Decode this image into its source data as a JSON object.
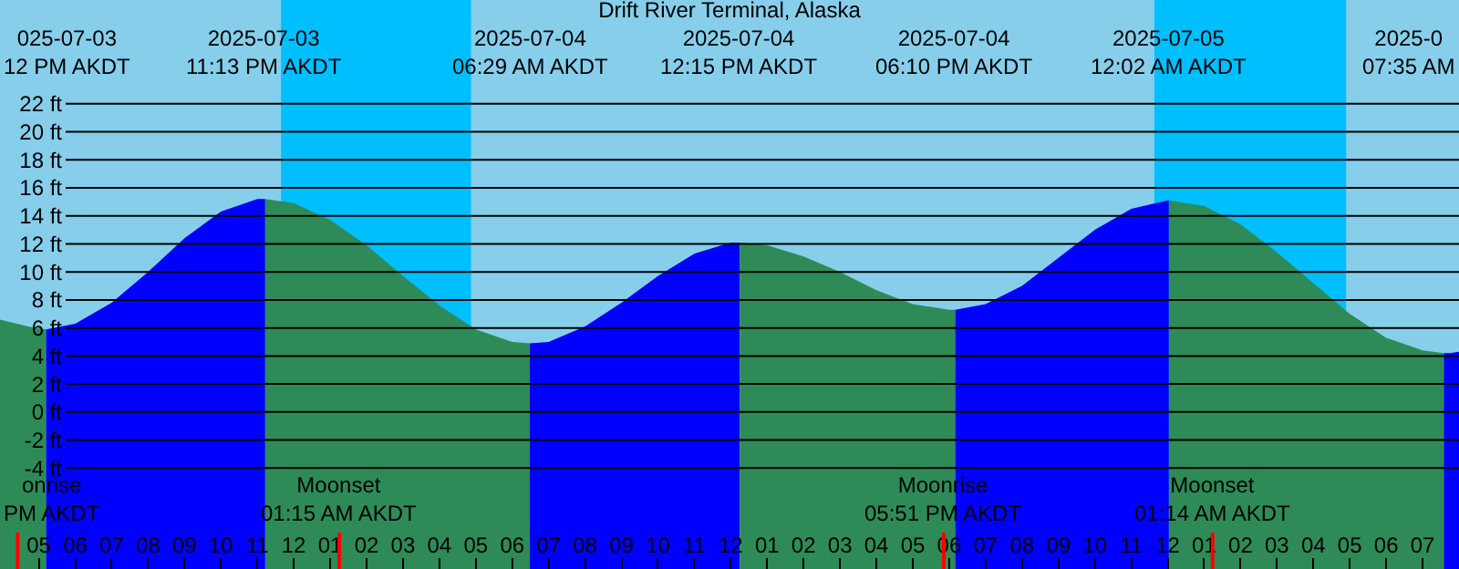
{
  "chart_data": {
    "type": "area",
    "title": "Drift River Terminal, Alaska",
    "xlim": [
      "2025-07-03T15:56",
      "2025-07-05T08:00"
    ],
    "ylim": [
      -11.2,
      29.4
    ],
    "xticks": [
      {
        "value": "2025-07-03T17:00",
        "label": "05"
      },
      {
        "value": "2025-07-03T18:00",
        "label": "06"
      },
      {
        "value": "2025-07-03T19:00",
        "label": "07"
      },
      {
        "value": "2025-07-03T20:00",
        "label": "08"
      },
      {
        "value": "2025-07-03T21:00",
        "label": "09"
      },
      {
        "value": "2025-07-03T22:00",
        "label": "10"
      },
      {
        "value": "2025-07-03T23:00",
        "label": "11"
      },
      {
        "value": "2025-07-04T00:00",
        "label": "12"
      },
      {
        "value": "2025-07-04T01:00",
        "label": "01"
      },
      {
        "value": "2025-07-04T02:00",
        "label": "02"
      },
      {
        "value": "2025-07-04T03:00",
        "label": "03"
      },
      {
        "value": "2025-07-04T04:00",
        "label": "04"
      },
      {
        "value": "2025-07-04T05:00",
        "label": "05"
      },
      {
        "value": "2025-07-04T06:00",
        "label": "06"
      },
      {
        "value": "2025-07-04T07:00",
        "label": "07"
      },
      {
        "value": "2025-07-04T08:00",
        "label": "08"
      },
      {
        "value": "2025-07-04T09:00",
        "label": "09"
      },
      {
        "value": "2025-07-04T10:00",
        "label": "10"
      },
      {
        "value": "2025-07-04T11:00",
        "label": "11"
      },
      {
        "value": "2025-07-04T12:00",
        "label": "12"
      },
      {
        "value": "2025-07-04T13:00",
        "label": "01"
      },
      {
        "value": "2025-07-04T14:00",
        "label": "02"
      },
      {
        "value": "2025-07-04T15:00",
        "label": "03"
      },
      {
        "value": "2025-07-04T16:00",
        "label": "04"
      },
      {
        "value": "2025-07-04T17:00",
        "label": "05"
      },
      {
        "value": "2025-07-04T18:00",
        "label": "06"
      },
      {
        "value": "2025-07-04T19:00",
        "label": "07"
      },
      {
        "value": "2025-07-04T20:00",
        "label": "08"
      },
      {
        "value": "2025-07-04T21:00",
        "label": "09"
      },
      {
        "value": "2025-07-04T22:00",
        "label": "10"
      },
      {
        "value": "2025-07-04T23:00",
        "label": "11"
      },
      {
        "value": "2025-07-05T00:00",
        "label": "12"
      },
      {
        "value": "2025-07-05T01:00",
        "label": "01"
      },
      {
        "value": "2025-07-05T02:00",
        "label": "02"
      },
      {
        "value": "2025-07-05T03:00",
        "label": "03"
      },
      {
        "value": "2025-07-05T04:00",
        "label": "04"
      },
      {
        "value": "2025-07-05T05:00",
        "label": "05"
      },
      {
        "value": "2025-07-05T06:00",
        "label": "06"
      },
      {
        "value": "2025-07-05T07:00",
        "label": "07"
      }
    ],
    "yticks": [
      {
        "value": -4,
        "label": "-4 ft"
      },
      {
        "value": -2,
        "label": "-2 ft"
      },
      {
        "value": 0,
        "label": "0 ft"
      },
      {
        "value": 2,
        "label": "2 ft"
      },
      {
        "value": 4,
        "label": "4 ft"
      },
      {
        "value": 6,
        "label": "6 ft"
      },
      {
        "value": 8,
        "label": "8 ft"
      },
      {
        "value": 10,
        "label": "10 ft"
      },
      {
        "value": 12,
        "label": "12 ft"
      },
      {
        "value": 14,
        "label": "14 ft"
      },
      {
        "value": 16,
        "label": "16 ft"
      },
      {
        "value": 18,
        "label": "18 ft"
      },
      {
        "value": 20,
        "label": "20 ft"
      },
      {
        "value": 22,
        "label": "22 ft"
      }
    ],
    "grid": "y",
    "bands": [
      {
        "axis": "x",
        "from": "2025-07-03T23:39",
        "to": "2025-07-04T04:52",
        "color": "#00bfff"
      },
      {
        "axis": "x",
        "from": "2025-07-04T23:38",
        "to": "2025-07-05T04:54",
        "color": "#00bfff"
      }
    ],
    "ref_lines": [
      {
        "axis": "x",
        "value": "2025-07-03T16:25",
        "label": "onrise\nPM AKDT",
        "color": "#ff0000"
      },
      {
        "axis": "x",
        "value": "2025-07-04T01:15",
        "label": "Moonset\n01:15 AM AKDT",
        "color": "#ff0000"
      },
      {
        "axis": "x",
        "value": "2025-07-04T17:51",
        "label": "Moonrise\n05:51 PM AKDT",
        "color": "#ff0000"
      },
      {
        "axis": "x",
        "value": "2025-07-05T01:14",
        "label": "Moonset\n01:14 AM AKDT",
        "color": "#ff0000"
      }
    ],
    "series": [
      {
        "color": "#2e8b57",
        "x": [
          "2025-07-03T15:56",
          "2025-07-03T16:42",
          "2025-07-03T17:12"
        ],
        "values": [
          6.6,
          6.1,
          5.9
        ]
      },
      {
        "color": "#0000ff",
        "x": [
          "2025-07-03T17:12",
          "2025-07-03T18:00",
          "2025-07-03T19:00",
          "2025-07-03T20:00",
          "2025-07-03T21:00",
          "2025-07-03T22:00",
          "2025-07-03T23:00",
          "2025-07-03T23:13"
        ],
        "values": [
          5.9,
          6.3,
          7.8,
          10.0,
          12.4,
          14.3,
          15.2,
          15.2
        ]
      },
      {
        "color": "#2e8b57",
        "x": [
          "2025-07-03T23:13",
          "2025-07-04T00:00",
          "2025-07-04T01:00",
          "2025-07-04T02:00",
          "2025-07-04T03:00",
          "2025-07-04T04:00",
          "2025-07-04T05:00",
          "2025-07-04T06:00",
          "2025-07-04T06:29"
        ],
        "values": [
          15.2,
          14.9,
          13.7,
          11.9,
          9.7,
          7.6,
          5.9,
          5.0,
          4.9
        ]
      },
      {
        "color": "#0000ff",
        "x": [
          "2025-07-04T06:29",
          "2025-07-04T07:00",
          "2025-07-04T08:00",
          "2025-07-04T09:00",
          "2025-07-04T10:00",
          "2025-07-04T11:00",
          "2025-07-04T12:00",
          "2025-07-04T12:15"
        ],
        "values": [
          4.9,
          5.0,
          6.1,
          7.8,
          9.7,
          11.3,
          12.1,
          12.1
        ]
      },
      {
        "color": "#2e8b57",
        "x": [
          "2025-07-04T12:15",
          "2025-07-04T13:00",
          "2025-07-04T14:00",
          "2025-07-04T15:00",
          "2025-07-04T16:00",
          "2025-07-04T17:00",
          "2025-07-04T18:00",
          "2025-07-04T18:10"
        ],
        "values": [
          12.1,
          11.9,
          11.1,
          10.0,
          8.7,
          7.7,
          7.3,
          7.3
        ]
      },
      {
        "color": "#0000ff",
        "x": [
          "2025-07-04T18:10",
          "2025-07-04T19:00",
          "2025-07-04T20:00",
          "2025-07-04T21:00",
          "2025-07-04T22:00",
          "2025-07-04T23:00",
          "2025-07-05T00:00",
          "2025-07-05T00:02"
        ],
        "values": [
          7.3,
          7.7,
          9.0,
          11.0,
          13.0,
          14.5,
          15.1,
          15.1
        ]
      },
      {
        "color": "#2e8b57",
        "x": [
          "2025-07-05T00:02",
          "2025-07-05T01:00",
          "2025-07-05T02:00",
          "2025-07-05T03:00",
          "2025-07-05T04:00",
          "2025-07-05T05:00",
          "2025-07-05T06:00",
          "2025-07-05T07:00",
          "2025-07-05T07:35"
        ],
        "values": [
          15.1,
          14.7,
          13.4,
          11.4,
          9.2,
          7.0,
          5.3,
          4.4,
          4.2
        ]
      },
      {
        "color": "#0000ff",
        "x": [
          "2025-07-05T07:35",
          "2025-07-05T07:45",
          "2025-07-05T08:00"
        ],
        "values": [
          4.2,
          4.2,
          4.3
        ]
      }
    ],
    "annotations": [
      "025-07-03\n12 PM AKDT",
      "2025-07-03\n11:13 PM AKDT",
      "2025-07-04\n06:29 AM AKDT",
      "2025-07-04\n12:15 PM AKDT",
      "2025-07-04\n06:10 PM AKDT",
      "2025-07-05\n12:02 AM AKDT",
      "2025-0\n07:35 AM"
    ]
  }
}
